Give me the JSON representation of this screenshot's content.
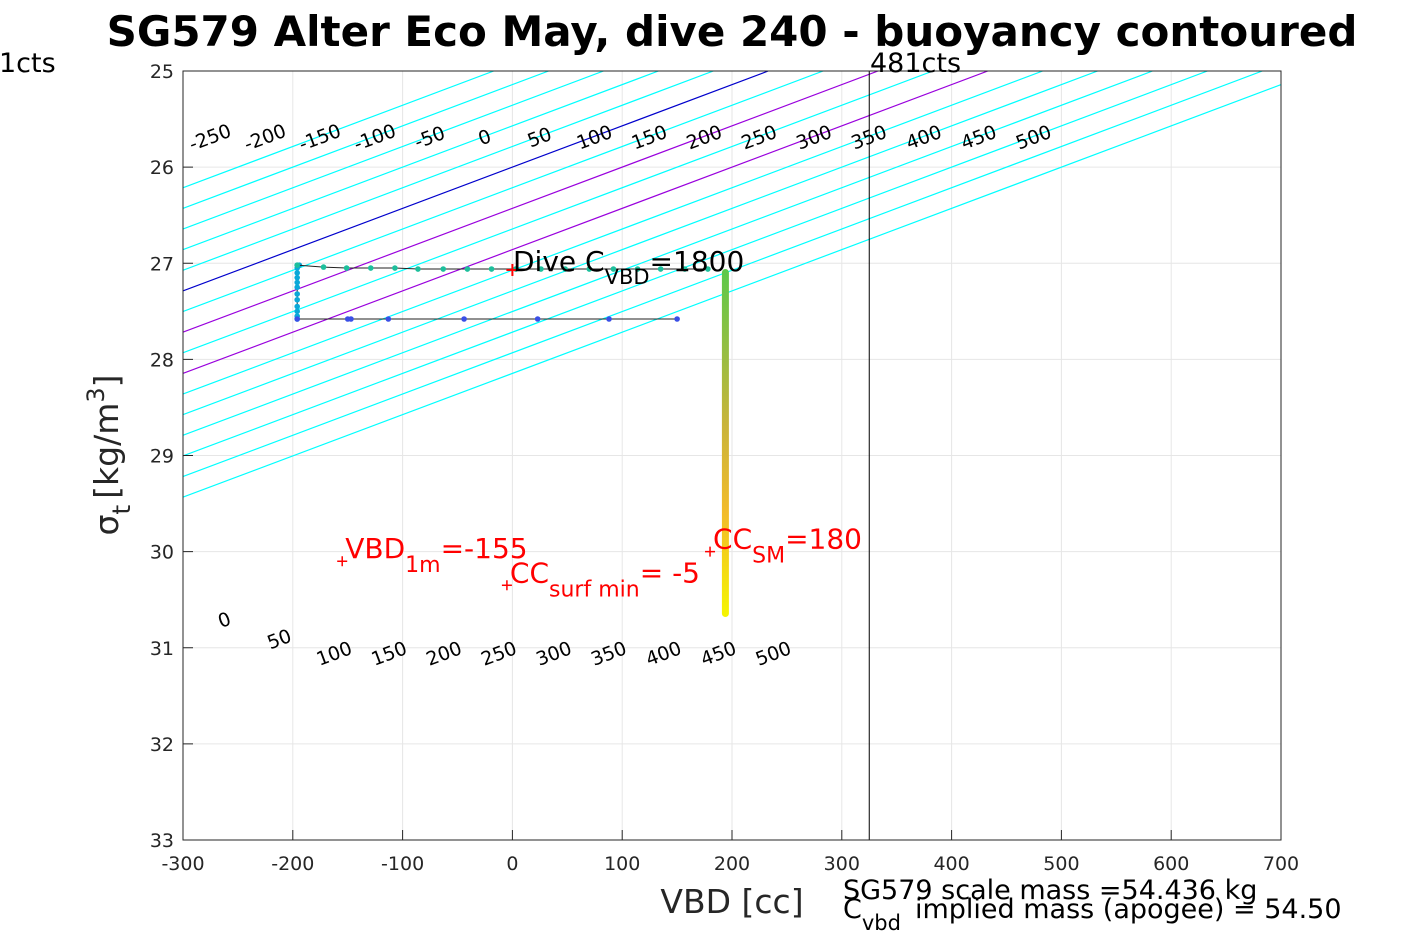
{
  "chart_data": {
    "type": "scatter",
    "title": "SG579 Alter Eco May, dive 240 - buoyancy contoured",
    "xlabel": "VBD [cc]",
    "ylabel_main": "σ",
    "ylabel_sub": "t",
    "ylabel_units": "[kg/m",
    "ylabel_sup": "3",
    "ylabel_close": "]",
    "xlim": [
      -300,
      700
    ],
    "ylim": [
      25,
      33
    ],
    "x_ticks": [
      -300,
      -200,
      -100,
      0,
      100,
      200,
      300,
      400,
      500,
      600,
      700
    ],
    "y_ticks": [
      25,
      26,
      27,
      28,
      29,
      30,
      31,
      32,
      33
    ],
    "grid": true,
    "left_cts_label": "1cts",
    "right_cts_label": "481cts",
    "right_cts_vbd": 325,
    "dive_cvbd": {
      "prefix": "Dive C",
      "sub": "VBD",
      "suffix": "=1800",
      "x": 0,
      "y": 27.07
    },
    "contour_slope_cc_per_sigma": 233,
    "contours_top": [
      {
        "label": "-250",
        "x_at_26": -250,
        "color": "#00ffff"
      },
      {
        "label": "-200",
        "x_at_26": -200,
        "color": "#00ffff"
      },
      {
        "label": "-150",
        "x_at_26": -150,
        "color": "#00ffff"
      },
      {
        "label": "-100",
        "x_at_26": -100,
        "color": "#00ffff"
      },
      {
        "label": "-50",
        "x_at_26": -50,
        "color": "#00ffff"
      },
      {
        "label": "0",
        "x_at_26": 0,
        "color": "#0000cc"
      },
      {
        "label": "50",
        "x_at_26": 50,
        "color": "#00ffff"
      },
      {
        "label": "100",
        "x_at_26": 100,
        "color": "#9900dd"
      },
      {
        "label": "150",
        "x_at_26": 150,
        "color": "#00ffff"
      },
      {
        "label": "200",
        "x_at_26": 200,
        "color": "#9900dd"
      },
      {
        "label": "250",
        "x_at_26": 250,
        "color": "#00ffff"
      },
      {
        "label": "300",
        "x_at_26": 300,
        "color": "#00ffff"
      },
      {
        "label": "350",
        "x_at_26": 350,
        "color": "#00ffff"
      },
      {
        "label": "400",
        "x_at_26": 400,
        "color": "#00ffff"
      },
      {
        "label": "450",
        "x_at_26": 450,
        "color": "#00ffff"
      },
      {
        "label": "500",
        "x_at_26": 500,
        "color": "#00ffff"
      }
    ],
    "contours_bottom_labels": [
      {
        "label": "0",
        "x": -262,
        "y": 30.72
      },
      {
        "label": "50",
        "x": -212,
        "y": 30.92
      },
      {
        "label": "100",
        "x": -162,
        "y": 31.07
      },
      {
        "label": "150",
        "x": -112,
        "y": 31.07
      },
      {
        "label": "200",
        "x": -62,
        "y": 31.07
      },
      {
        "label": "250",
        "x": -12,
        "y": 31.07
      },
      {
        "label": "300",
        "x": 38,
        "y": 31.07
      },
      {
        "label": "350",
        "x": 88,
        "y": 31.07
      },
      {
        "label": "400",
        "x": 138,
        "y": 31.07
      },
      {
        "label": "450",
        "x": 188,
        "y": 31.07
      },
      {
        "label": "500",
        "x": 238,
        "y": 31.07
      }
    ],
    "series": [
      {
        "points": [
          [
            -196,
            27.02
          ],
          [
            -194,
            27.02
          ],
          [
            -196,
            27.05
          ],
          [
            -196,
            27.1
          ],
          [
            -196,
            27.15
          ],
          [
            -196,
            27.2
          ],
          [
            -196,
            27.25
          ],
          [
            -196,
            27.32
          ],
          [
            -196,
            27.38
          ],
          [
            -196,
            27.45
          ],
          [
            -196,
            27.5
          ],
          [
            -196,
            27.55
          ],
          [
            -196,
            27.58
          ]
        ],
        "color": "#0aa8d8"
      },
      {
        "points": [
          [
            -196,
            27.58
          ],
          [
            -150,
            27.58
          ],
          [
            -147,
            27.58
          ],
          [
            -113,
            27.58
          ],
          [
            -44,
            27.58
          ],
          [
            23,
            27.58
          ],
          [
            88,
            27.58
          ],
          [
            150,
            27.58
          ]
        ],
        "color": "#3a4fe6"
      },
      {
        "points": [
          [
            -196,
            27.02
          ],
          [
            -172,
            27.04
          ],
          [
            -151,
            27.05
          ],
          [
            -129,
            27.05
          ],
          [
            -107,
            27.05
          ],
          [
            -86,
            27.06
          ],
          [
            -63,
            27.06
          ],
          [
            -41,
            27.06
          ],
          [
            -19,
            27.06
          ],
          [
            3,
            27.06
          ],
          [
            26,
            27.06
          ],
          [
            48,
            27.06
          ],
          [
            70,
            27.06
          ],
          [
            92,
            27.06
          ],
          [
            114,
            27.06
          ],
          [
            135,
            27.06
          ],
          [
            157,
            27.06
          ],
          [
            178,
            27.06
          ]
        ],
        "color": "#1dbf9c"
      }
    ],
    "vertical_trace": {
      "x": 194,
      "y_start": 27.06,
      "y_end": 30.68
    },
    "annotations": [
      {
        "text": "VBD",
        "sub": "1m",
        "suffix": "=-155",
        "x": -155,
        "y": 30.1,
        "color": "#ff0000"
      },
      {
        "text": "CC",
        "sub": "surf min",
        "suffix": "= -5",
        "x": -5,
        "y": 30.35,
        "color": "#ff0000"
      },
      {
        "text": "CC",
        "sub": "SM",
        "suffix": "=180",
        "x": 180,
        "y": 30.0,
        "color": "#ff0000"
      }
    ],
    "footer_line1": "SG579 scale mass =54.436 kg",
    "footer_line2_prefix": "C",
    "footer_line2_sub": "vbd",
    "footer_line2_suffix": "implied mass (apogee) = 54.50"
  }
}
